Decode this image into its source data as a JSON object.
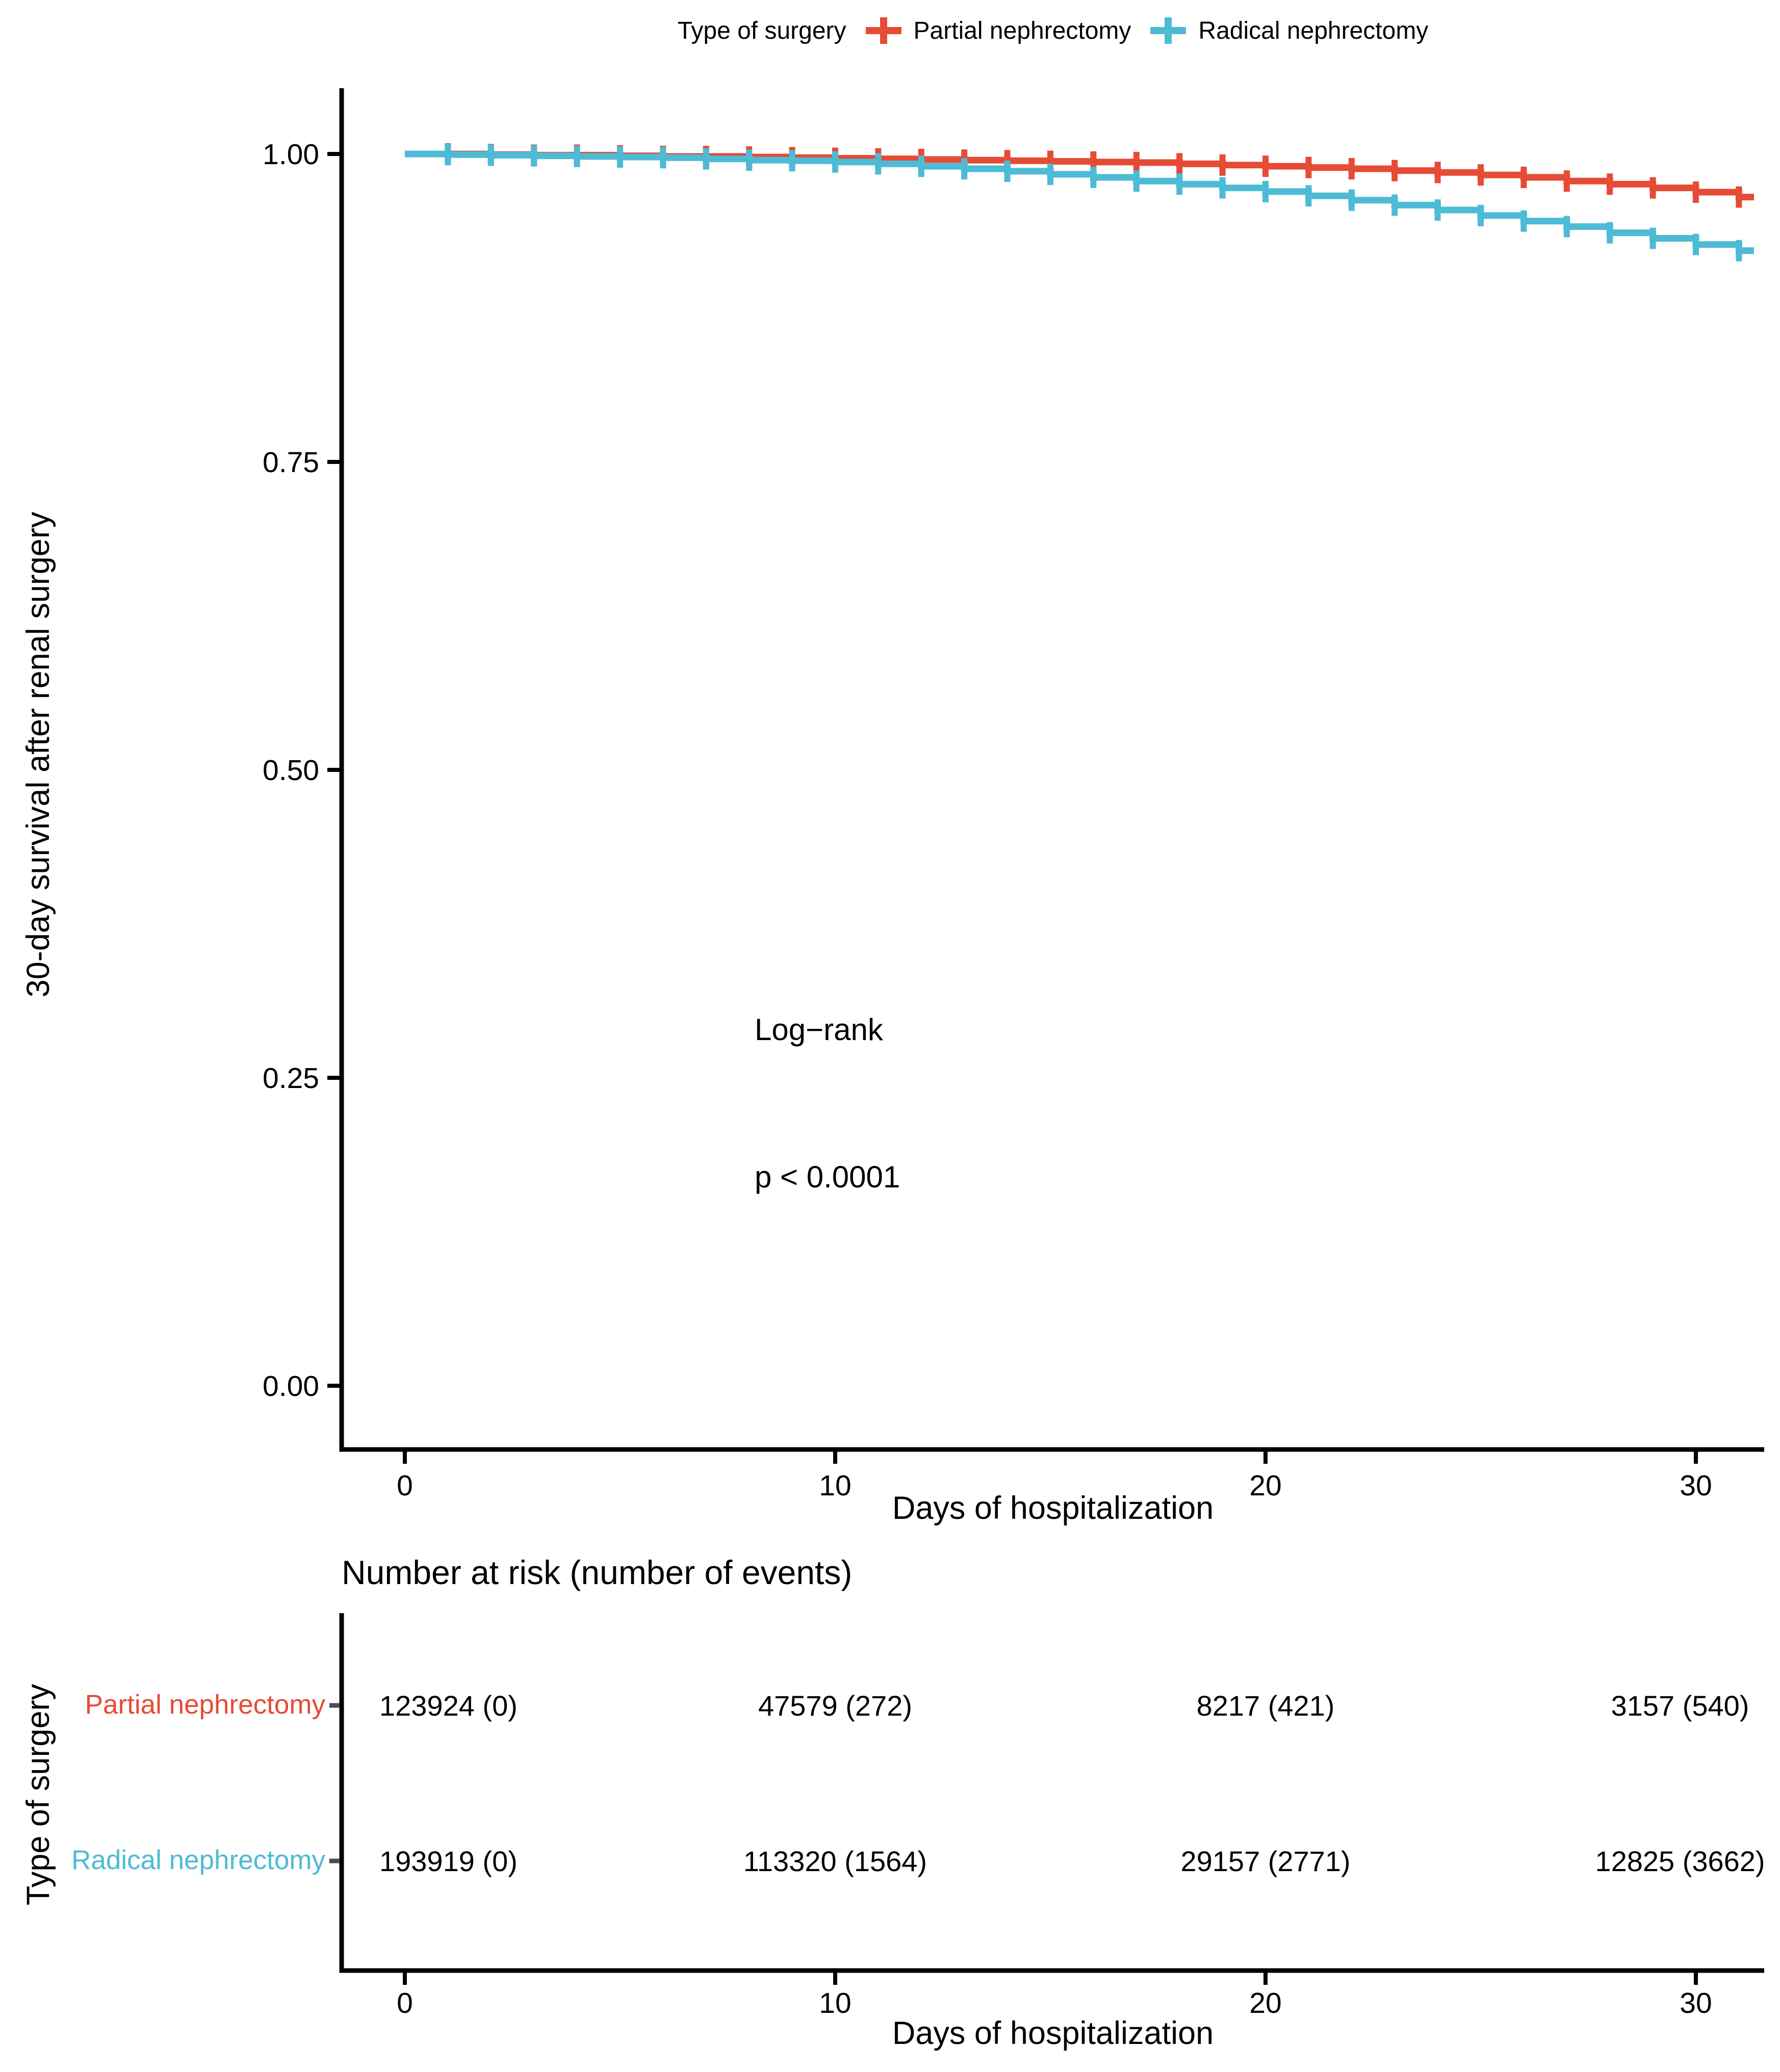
{
  "legend": {
    "title": "Type of surgery",
    "items": [
      {
        "label": "Partial nephrectomy",
        "color": "#E64B35"
      },
      {
        "label": "Radical nephrectomy",
        "color": "#4DBBD5"
      }
    ]
  },
  "plot": {
    "y_axis_title": "30-day survival after renal surgery",
    "x_axis_title": "Days of hospitalization",
    "annotations": {
      "logrank": "Log−rank",
      "pvalue": "p < 0.0001"
    }
  },
  "risk_table": {
    "title": "Number at risk (number of events)",
    "y_axis_title": "Type of surgery",
    "x_axis_title": "Days of hospitalization",
    "x_ticks": [
      "0",
      "10",
      "20",
      "30"
    ],
    "rows": [
      {
        "label": "Partial nephrectomy",
        "color": "#E64B35",
        "values": [
          "123924 (0)",
          "47579 (272)",
          "8217 (421)",
          "3157 (540)"
        ]
      },
      {
        "label": "Radical nephrectomy",
        "color": "#4DBBD5",
        "values": [
          "193919 (0)",
          "113320 (1564)",
          "29157 (2771)",
          "12825 (3662)"
        ]
      }
    ]
  },
  "chart_data": {
    "type": "line",
    "subtype": "kaplan-meier-step-curve",
    "title": "",
    "xlabel": "Days of hospitalization",
    "ylabel": "30-day survival after renal surgery",
    "xlim": [
      0,
      31.5
    ],
    "ylim": [
      0,
      1.0
    ],
    "x_ticks": [
      0,
      10,
      20,
      30
    ],
    "y_ticks": [
      {
        "v": 1.0,
        "label": "1.00"
      },
      {
        "v": 0.75,
        "label": "0.75"
      },
      {
        "v": 0.5,
        "label": "0.50"
      },
      {
        "v": 0.25,
        "label": "0.25"
      },
      {
        "v": 0.0,
        "label": "0.00"
      }
    ],
    "grid": false,
    "legend_position": "top",
    "censor_marks": "plus sign at every integer day 1-31 on each curve",
    "series": [
      {
        "name": "Partial nephrectomy",
        "color": "#E64B35",
        "days": [
          0,
          1,
          2,
          3,
          4,
          5,
          6,
          7,
          8,
          9,
          10,
          11,
          12,
          13,
          14,
          15,
          16,
          17,
          18,
          19,
          20,
          21,
          22,
          23,
          24,
          25,
          26,
          27,
          28,
          29,
          30,
          31
        ],
        "survival": [
          1.0,
          1.0,
          0.9995,
          0.999,
          0.999,
          0.9985,
          0.998,
          0.998,
          0.9975,
          0.997,
          0.9965,
          0.996,
          0.9955,
          0.995,
          0.9945,
          0.994,
          0.9935,
          0.993,
          0.992,
          0.991,
          0.99,
          0.989,
          0.988,
          0.9865,
          0.985,
          0.983,
          0.981,
          0.978,
          0.9755,
          0.9725,
          0.969,
          0.965
        ]
      },
      {
        "name": "Radical nephrectomy",
        "color": "#4DBBD5",
        "days": [
          0,
          1,
          2,
          3,
          4,
          5,
          6,
          7,
          8,
          9,
          10,
          11,
          12,
          13,
          14,
          15,
          16,
          17,
          18,
          19,
          20,
          21,
          22,
          23,
          24,
          25,
          26,
          27,
          28,
          29,
          30,
          31
        ],
        "survival": [
          1.0,
          0.9995,
          0.999,
          0.9985,
          0.998,
          0.9975,
          0.997,
          0.996,
          0.995,
          0.9945,
          0.9935,
          0.992,
          0.99,
          0.988,
          0.986,
          0.9835,
          0.981,
          0.978,
          0.9755,
          0.9725,
          0.9695,
          0.966,
          0.9625,
          0.9585,
          0.9545,
          0.95,
          0.9455,
          0.941,
          0.936,
          0.9315,
          0.9265,
          0.9215
        ]
      }
    ],
    "stat_test": {
      "name": "Log−rank",
      "p_value": "p < 0.0001"
    },
    "risk_table_data": {
      "title": "Number at risk (number of events)",
      "time_points": [
        0,
        10,
        20,
        30
      ],
      "groups": [
        {
          "name": "Partial nephrectomy",
          "at_risk": [
            123924,
            47579,
            8217,
            3157
          ],
          "events": [
            0,
            272,
            421,
            540
          ]
        },
        {
          "name": "Radical nephrectomy",
          "at_risk": [
            193919,
            113320,
            29157,
            12825
          ],
          "events": [
            0,
            1564,
            2771,
            3662
          ]
        }
      ]
    }
  }
}
